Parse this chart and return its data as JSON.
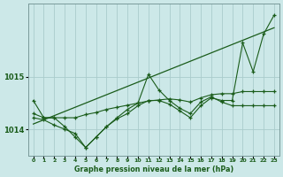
{
  "background_color": "#cce8e8",
  "grid_color": "#aacccc",
  "line_color": "#1a5c1a",
  "title": "Graphe pression niveau de la mer (hPa)",
  "ylim": [
    1013.5,
    1016.4
  ],
  "xlim": [
    -0.5,
    23.5
  ],
  "yticks": [
    1014,
    1015
  ],
  "xticks": [
    0,
    1,
    2,
    3,
    4,
    5,
    6,
    7,
    8,
    9,
    10,
    11,
    12,
    13,
    14,
    15,
    16,
    17,
    18,
    19,
    20,
    21,
    22,
    23
  ],
  "series": {
    "straight": [
      1014.1,
      1014.18,
      1014.26,
      1014.34,
      1014.42,
      1014.5,
      1014.58,
      1014.66,
      1014.74,
      1014.82,
      1014.9,
      1014.98,
      1015.06,
      1015.14,
      1015.22,
      1015.3,
      1015.38,
      1015.46,
      1015.54,
      1015.62,
      1015.7,
      1015.78,
      1015.86,
      1015.94
    ],
    "line_flat": [
      1014.55,
      1014.22,
      1014.22,
      1014.22,
      1014.22,
      1014.28,
      1014.32,
      1014.38,
      1014.42,
      1014.46,
      1014.5,
      1014.54,
      1014.56,
      1014.58,
      1014.56,
      1014.52,
      1014.6,
      1014.66,
      1014.68,
      1014.68,
      1014.72,
      1014.72,
      1014.72,
      1014.72
    ],
    "line_wavy": [
      1014.3,
      1014.22,
      1014.22,
      1014.05,
      1013.85,
      1013.65,
      1013.85,
      1014.05,
      1014.22,
      1014.38,
      1014.5,
      1015.05,
      1014.75,
      1014.55,
      1014.4,
      1014.3,
      1014.52,
      1014.62,
      1014.52,
      1014.45,
      1014.45,
      1014.45,
      1014.45,
      1014.45
    ],
    "line_big": [
      1014.22,
      1014.18,
      1014.08,
      1014.0,
      1013.92,
      1013.65,
      1013.85,
      1014.05,
      1014.2,
      1014.3,
      1014.45,
      1014.55,
      1014.55,
      1014.48,
      1014.35,
      1014.22,
      1014.45,
      1014.6,
      1014.55,
      1014.55,
      1015.65,
      1015.1,
      1015.82,
      1016.18
    ]
  }
}
